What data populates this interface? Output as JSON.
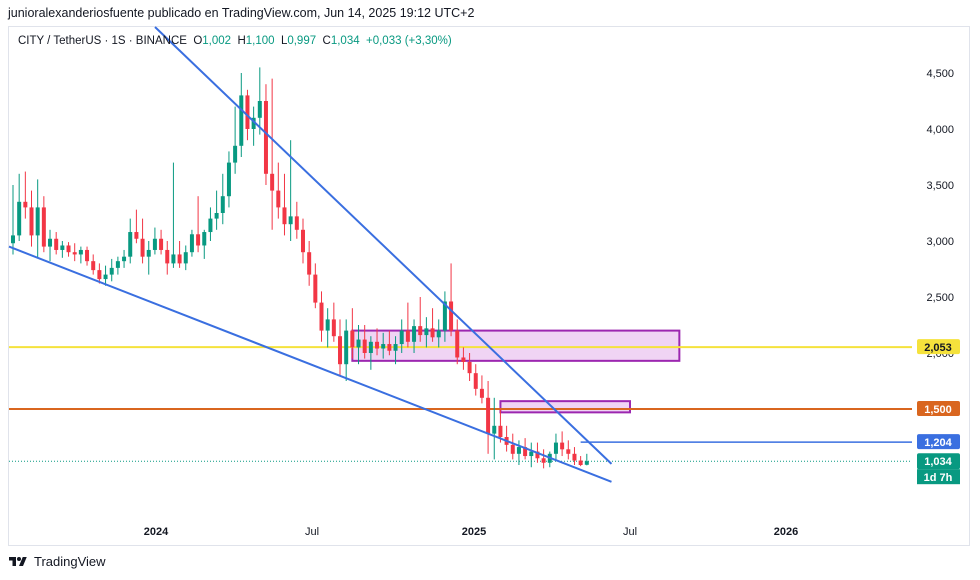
{
  "header": {
    "text": "junioralexanderiosfuente publicado en TradingView.com, Jun 14, 2025 19:12 UTC+2"
  },
  "legend": {
    "symbol": "CITY / TetherUS · 1S · BINANCE",
    "o_label": "O",
    "o_value": "1,002",
    "h_label": "H",
    "h_value": "1,100",
    "l_label": "L",
    "l_value": "0,997",
    "c_label": "C",
    "c_value": "1,034",
    "change": "+0,033 (+3,30%)"
  },
  "footer": {
    "brand": "TradingView"
  },
  "colors": {
    "up": "#089981",
    "down": "#f23645",
    "trend": "#3a6fe0",
    "yellow_level": "#f5e23c",
    "orange_level": "#d9661f",
    "zone_fill": "#e6b8ec",
    "zone_border": "#9c27b0"
  },
  "chart_data": {
    "type": "candlestick",
    "pair": "CITY / TetherUS",
    "interval": "1S",
    "exchange": "BINANCE",
    "x_ticks": [
      "2024",
      "Jul",
      "2025",
      "Jul",
      "2026"
    ],
    "y_ticks": [
      "4,500",
      "4,000",
      "3,500",
      "3,000",
      "2,500",
      "2,000"
    ],
    "ylim": [
      0.3,
      5.0
    ],
    "price_tags": [
      {
        "label": "2,053",
        "value": 2.053,
        "color": "#f5e23c",
        "text_color": "#131722"
      },
      {
        "label": "1,500",
        "value": 1.5,
        "color": "#d9661f",
        "text_color": "#ffffff"
      },
      {
        "label": "1,204",
        "value": 1.204,
        "color": "#3a6fe0",
        "text_color": "#ffffff"
      },
      {
        "label": "1,034",
        "value": 1.034,
        "color": "#089981",
        "text_color": "#ffffff"
      }
    ],
    "countdown": "1d 7h",
    "horizontal_levels": [
      {
        "name": "yellow-level",
        "value": 2.053,
        "color": "#f5e23c"
      },
      {
        "name": "orange-level",
        "value": 1.5,
        "color": "#d9661f"
      }
    ],
    "candles": [
      {
        "o": 2.98,
        "h": 3.5,
        "l": 2.88,
        "c": 3.05
      },
      {
        "o": 3.05,
        "h": 3.6,
        "l": 3.0,
        "c": 3.35
      },
      {
        "o": 3.35,
        "h": 3.62,
        "l": 3.2,
        "c": 3.3
      },
      {
        "o": 3.3,
        "h": 3.45,
        "l": 2.95,
        "c": 3.05
      },
      {
        "o": 3.05,
        "h": 3.55,
        "l": 2.85,
        "c": 3.3
      },
      {
        "o": 3.3,
        "h": 3.4,
        "l": 2.9,
        "c": 2.95
      },
      {
        "o": 2.95,
        "h": 3.1,
        "l": 2.82,
        "c": 3.02
      },
      {
        "o": 3.02,
        "h": 3.08,
        "l": 2.88,
        "c": 2.92
      },
      {
        "o": 2.92,
        "h": 3.0,
        "l": 2.85,
        "c": 2.96
      },
      {
        "o": 2.96,
        "h": 2.99,
        "l": 2.86,
        "c": 2.9
      },
      {
        "o": 2.9,
        "h": 2.98,
        "l": 2.82,
        "c": 2.88
      },
      {
        "o": 2.88,
        "h": 2.95,
        "l": 2.8,
        "c": 2.92
      },
      {
        "o": 2.92,
        "h": 2.95,
        "l": 2.78,
        "c": 2.82
      },
      {
        "o": 2.82,
        "h": 2.88,
        "l": 2.7,
        "c": 2.74
      },
      {
        "o": 2.74,
        "h": 2.8,
        "l": 2.62,
        "c": 2.66
      },
      {
        "o": 2.66,
        "h": 2.78,
        "l": 2.6,
        "c": 2.7
      },
      {
        "o": 2.7,
        "h": 2.84,
        "l": 2.64,
        "c": 2.76
      },
      {
        "o": 2.76,
        "h": 2.86,
        "l": 2.7,
        "c": 2.82
      },
      {
        "o": 2.82,
        "h": 2.92,
        "l": 2.76,
        "c": 2.86
      },
      {
        "o": 2.86,
        "h": 3.2,
        "l": 2.8,
        "c": 3.08
      },
      {
        "o": 3.08,
        "h": 3.28,
        "l": 2.98,
        "c": 3.02
      },
      {
        "o": 3.02,
        "h": 3.2,
        "l": 2.8,
        "c": 2.86
      },
      {
        "o": 2.86,
        "h": 3.0,
        "l": 2.7,
        "c": 2.92
      },
      {
        "o": 2.92,
        "h": 3.12,
        "l": 2.88,
        "c": 3.02
      },
      {
        "o": 3.02,
        "h": 3.1,
        "l": 2.88,
        "c": 2.92
      },
      {
        "o": 2.92,
        "h": 3.0,
        "l": 2.7,
        "c": 2.8
      },
      {
        "o": 2.8,
        "h": 3.7,
        "l": 2.76,
        "c": 2.88
      },
      {
        "o": 2.88,
        "h": 3.0,
        "l": 2.76,
        "c": 2.8
      },
      {
        "o": 2.8,
        "h": 2.96,
        "l": 2.74,
        "c": 2.9
      },
      {
        "o": 2.9,
        "h": 3.1,
        "l": 2.86,
        "c": 3.06
      },
      {
        "o": 3.06,
        "h": 3.4,
        "l": 2.9,
        "c": 2.96
      },
      {
        "o": 2.96,
        "h": 3.1,
        "l": 2.84,
        "c": 3.08
      },
      {
        "o": 3.08,
        "h": 3.3,
        "l": 3.0,
        "c": 3.2
      },
      {
        "o": 3.2,
        "h": 3.45,
        "l": 3.1,
        "c": 3.25
      },
      {
        "o": 3.25,
        "h": 3.6,
        "l": 3.15,
        "c": 3.4
      },
      {
        "o": 3.4,
        "h": 3.8,
        "l": 3.3,
        "c": 3.7
      },
      {
        "o": 3.7,
        "h": 4.2,
        "l": 3.6,
        "c": 3.85
      },
      {
        "o": 3.85,
        "h": 4.5,
        "l": 3.75,
        "c": 4.3
      },
      {
        "o": 4.3,
        "h": 4.35,
        "l": 3.9,
        "c": 4.0
      },
      {
        "o": 4.0,
        "h": 4.2,
        "l": 3.85,
        "c": 4.1
      },
      {
        "o": 4.1,
        "h": 4.55,
        "l": 3.95,
        "c": 4.25
      },
      {
        "o": 4.25,
        "h": 4.4,
        "l": 3.5,
        "c": 3.6
      },
      {
        "o": 3.6,
        "h": 4.45,
        "l": 3.1,
        "c": 3.45
      },
      {
        "o": 3.45,
        "h": 3.7,
        "l": 3.2,
        "c": 3.3
      },
      {
        "o": 3.3,
        "h": 3.6,
        "l": 3.05,
        "c": 3.15
      },
      {
        "o": 3.15,
        "h": 3.9,
        "l": 3.0,
        "c": 3.22
      },
      {
        "o": 3.22,
        "h": 3.35,
        "l": 3.02,
        "c": 3.1
      },
      {
        "o": 3.1,
        "h": 3.2,
        "l": 2.8,
        "c": 2.9
      },
      {
        "o": 2.9,
        "h": 3.0,
        "l": 2.6,
        "c": 2.7
      },
      {
        "o": 2.7,
        "h": 2.8,
        "l": 2.4,
        "c": 2.45
      },
      {
        "o": 2.45,
        "h": 2.55,
        "l": 2.1,
        "c": 2.2
      },
      {
        "o": 2.2,
        "h": 2.4,
        "l": 2.05,
        "c": 2.3
      },
      {
        "o": 2.3,
        "h": 2.45,
        "l": 2.1,
        "c": 2.15
      },
      {
        "o": 2.15,
        "h": 2.3,
        "l": 1.8,
        "c": 1.9
      },
      {
        "o": 1.9,
        "h": 2.3,
        "l": 1.75,
        "c": 2.2
      },
      {
        "o": 2.2,
        "h": 2.4,
        "l": 1.95,
        "c": 2.05
      },
      {
        "o": 2.05,
        "h": 2.25,
        "l": 1.9,
        "c": 2.12
      },
      {
        "o": 2.12,
        "h": 2.25,
        "l": 1.95,
        "c": 2.0
      },
      {
        "o": 2.0,
        "h": 2.15,
        "l": 1.85,
        "c": 2.1
      },
      {
        "o": 2.1,
        "h": 2.22,
        "l": 1.98,
        "c": 2.04
      },
      {
        "o": 2.04,
        "h": 2.18,
        "l": 1.95,
        "c": 2.08
      },
      {
        "o": 2.08,
        "h": 2.2,
        "l": 1.98,
        "c": 2.02
      },
      {
        "o": 2.02,
        "h": 2.15,
        "l": 1.9,
        "c": 2.08
      },
      {
        "o": 2.08,
        "h": 2.3,
        "l": 2.0,
        "c": 2.2
      },
      {
        "o": 2.2,
        "h": 2.45,
        "l": 2.05,
        "c": 2.1
      },
      {
        "o": 2.1,
        "h": 2.3,
        "l": 2.0,
        "c": 2.24
      },
      {
        "o": 2.24,
        "h": 2.5,
        "l": 2.1,
        "c": 2.16
      },
      {
        "o": 2.16,
        "h": 2.32,
        "l": 2.05,
        "c": 2.22
      },
      {
        "o": 2.22,
        "h": 2.4,
        "l": 2.1,
        "c": 2.14
      },
      {
        "o": 2.14,
        "h": 2.3,
        "l": 2.05,
        "c": 2.2
      },
      {
        "o": 2.2,
        "h": 2.55,
        "l": 2.1,
        "c": 2.46
      },
      {
        "o": 2.46,
        "h": 2.8,
        "l": 2.15,
        "c": 2.2
      },
      {
        "o": 2.2,
        "h": 2.3,
        "l": 1.9,
        "c": 1.96
      },
      {
        "o": 1.96,
        "h": 2.05,
        "l": 1.85,
        "c": 1.92
      },
      {
        "o": 1.92,
        "h": 2.0,
        "l": 1.75,
        "c": 1.82
      },
      {
        "o": 1.82,
        "h": 1.9,
        "l": 1.62,
        "c": 1.68
      },
      {
        "o": 1.68,
        "h": 1.8,
        "l": 1.55,
        "c": 1.6
      },
      {
        "o": 1.6,
        "h": 1.75,
        "l": 1.1,
        "c": 1.28
      },
      {
        "o": 1.28,
        "h": 1.6,
        "l": 1.05,
        "c": 1.35
      },
      {
        "o": 1.35,
        "h": 1.5,
        "l": 1.2,
        "c": 1.25
      },
      {
        "o": 1.25,
        "h": 1.35,
        "l": 1.12,
        "c": 1.18
      },
      {
        "o": 1.18,
        "h": 1.28,
        "l": 1.05,
        "c": 1.1
      },
      {
        "o": 1.1,
        "h": 1.22,
        "l": 1.0,
        "c": 1.16
      },
      {
        "o": 1.16,
        "h": 1.24,
        "l": 1.05,
        "c": 1.08
      },
      {
        "o": 1.08,
        "h": 1.2,
        "l": 0.98,
        "c": 1.12
      },
      {
        "o": 1.12,
        "h": 1.2,
        "l": 1.02,
        "c": 1.06
      },
      {
        "o": 1.06,
        "h": 1.14,
        "l": 0.97,
        "c": 1.02
      },
      {
        "o": 1.02,
        "h": 1.12,
        "l": 0.98,
        "c": 1.1
      },
      {
        "o": 1.1,
        "h": 1.28,
        "l": 1.04,
        "c": 1.2
      },
      {
        "o": 1.2,
        "h": 1.3,
        "l": 1.08,
        "c": 1.14
      },
      {
        "o": 1.14,
        "h": 1.22,
        "l": 1.05,
        "c": 1.1
      },
      {
        "o": 1.1,
        "h": 1.16,
        "l": 1.0,
        "c": 1.04
      },
      {
        "o": 1.04,
        "h": 1.08,
        "l": 0.99,
        "c": 1.0
      },
      {
        "o": 1.002,
        "h": 1.1,
        "l": 0.997,
        "c": 1.034
      }
    ]
  },
  "annotations": {
    "trend_upper": {
      "from": {
        "i": 0,
        "v": 5.0
      },
      "to": {
        "i": 97,
        "v": 1.01
      }
    },
    "trend_lower": {
      "from": {
        "i": -1,
        "v": 2.95
      },
      "to": {
        "i": 97,
        "v": 0.85
      }
    },
    "zone_1": {
      "from_i": 55,
      "to_i": 108,
      "top": 2.2,
      "bottom": 1.93
    },
    "zone_2": {
      "from_i": 79,
      "to_i": 100,
      "top": 1.57,
      "bottom": 1.47
    },
    "level_1204": {
      "from_i": 92,
      "value": 1.204
    }
  }
}
